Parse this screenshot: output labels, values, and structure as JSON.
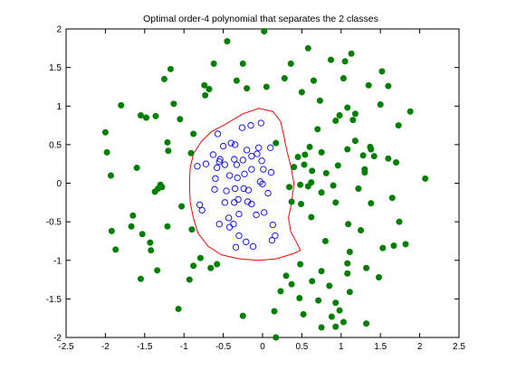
{
  "chart_data": {
    "type": "scatter",
    "title": "Optimal order-4 polynomial that separates the 2 classes",
    "xlabel": "",
    "ylabel": "",
    "xlim": [
      -2.5,
      2.5
    ],
    "ylim": [
      -2,
      2
    ],
    "xticks": [
      "-2.5",
      "-2",
      "-1.5",
      "-1",
      "-0.5",
      "0",
      "0.5",
      "1",
      "1.5",
      "2",
      "2.5"
    ],
    "yticks": [
      "-2",
      "-1.5",
      "-1",
      "-0.5",
      "0",
      "0.5",
      "1",
      "1.5",
      "2"
    ],
    "grid": false,
    "legend": "none",
    "colors": {
      "outer": "#007f00",
      "inner": "#0000ff",
      "boundary": "#ff0000"
    },
    "series": [
      {
        "marker": "filled-circle",
        "color": "#007f00",
        "points": [
          [
            0.02,
            1.97
          ],
          [
            -0.45,
            1.84
          ],
          [
            0.58,
            1.75
          ],
          [
            1.13,
            1.68
          ],
          [
            1.05,
            1.58
          ],
          [
            0.87,
            1.6
          ],
          [
            -0.25,
            1.55
          ],
          [
            0.36,
            1.55
          ],
          [
            -0.62,
            1.55
          ],
          [
            1.52,
            1.45
          ],
          [
            -1.17,
            1.48
          ],
          [
            -1.25,
            1.35
          ],
          [
            0.28,
            1.36
          ],
          [
            0.65,
            1.33
          ],
          [
            1.03,
            1.36
          ],
          [
            -0.33,
            1.33
          ],
          [
            -0.74,
            1.27
          ],
          [
            -0.68,
            1.22
          ],
          [
            1.35,
            1.27
          ],
          [
            0.05,
            1.25
          ],
          [
            0.5,
            1.18
          ],
          [
            1.6,
            1.26
          ],
          [
            -1.8,
            1.01
          ],
          [
            -1.55,
            0.88
          ],
          [
            -0.2,
            1.23
          ],
          [
            1.5,
            1.02
          ],
          [
            0.73,
            1.07
          ],
          [
            -1.13,
            1.03
          ],
          [
            -1.36,
            0.87
          ],
          [
            1.08,
            0.98
          ],
          [
            -0.73,
            1.14
          ],
          [
            1.18,
            0.9
          ],
          [
            0.98,
            0.88
          ],
          [
            1.88,
            0.93
          ],
          [
            -1.05,
            0.83
          ],
          [
            -1.48,
            0.85
          ],
          [
            0.93,
            0.81
          ],
          [
            1.15,
            0.82
          ],
          [
            0.7,
            0.7
          ],
          [
            1.73,
            0.75
          ],
          [
            -2.0,
            0.66
          ],
          [
            -0.88,
            0.64
          ],
          [
            1.18,
            0.55
          ],
          [
            1.38,
            0.44
          ],
          [
            0.6,
            0.47
          ],
          [
            -1.21,
            0.53
          ],
          [
            0.17,
            0.52
          ],
          [
            1.08,
            0.44
          ],
          [
            -1.98,
            0.4
          ],
          [
            1.37,
            0.47
          ],
          [
            -1.2,
            0.42
          ],
          [
            0.75,
            0.4
          ],
          [
            0.54,
            0.37
          ],
          [
            -0.91,
            0.39
          ],
          [
            0.45,
            0.34
          ],
          [
            1.28,
            0.36
          ],
          [
            1.42,
            0.35
          ],
          [
            1.6,
            0.32
          ],
          [
            0.53,
            0.24
          ],
          [
            -1.6,
            0.2
          ],
          [
            0.4,
            0.21
          ],
          [
            0.96,
            0.23
          ],
          [
            0.63,
            0.16
          ],
          [
            1.7,
            0.27
          ],
          [
            1.3,
            0.18
          ],
          [
            0.81,
            0.13
          ],
          [
            -1.93,
            0.1
          ],
          [
            1.3,
            0.14
          ],
          [
            2.07,
            0.06
          ],
          [
            0.62,
            0.01
          ],
          [
            0.48,
            -0.02
          ],
          [
            0.34,
            -0.05
          ],
          [
            -1.3,
            -0.02
          ],
          [
            0.9,
            -0.03
          ],
          [
            -1.28,
            -0.05
          ],
          [
            -1.33,
            -0.07
          ],
          [
            1.22,
            -0.07
          ],
          [
            0.58,
            -0.04
          ],
          [
            -1.37,
            -0.11
          ],
          [
            0.75,
            -0.12
          ],
          [
            1.65,
            -0.19
          ],
          [
            0.37,
            -0.24
          ],
          [
            0.49,
            -0.27
          ],
          [
            0.93,
            -0.25
          ],
          [
            1.38,
            -0.26
          ],
          [
            -1.03,
            -0.3
          ],
          [
            -1.65,
            -0.42
          ],
          [
            0.62,
            -0.44
          ],
          [
            1.74,
            -0.5
          ],
          [
            1.09,
            -0.53
          ],
          [
            -1.67,
            -0.56
          ],
          [
            1.25,
            -0.61
          ],
          [
            -1.21,
            -0.56
          ],
          [
            -0.9,
            -0.6
          ],
          [
            -1.53,
            -0.66
          ],
          [
            -1.92,
            -0.62
          ],
          [
            0.8,
            -0.75
          ],
          [
            -1.43,
            -0.77
          ],
          [
            1.67,
            -0.81
          ],
          [
            1.53,
            -0.84
          ],
          [
            1.82,
            -0.79
          ],
          [
            -1.87,
            -0.86
          ],
          [
            -1.42,
            -0.87
          ],
          [
            1.11,
            -0.89
          ],
          [
            -0.79,
            -0.97
          ],
          [
            1.08,
            -1.04
          ],
          [
            -0.88,
            -1.07
          ],
          [
            -1.34,
            -1.13
          ],
          [
            1.32,
            -1.1
          ],
          [
            0.48,
            -1.05
          ],
          [
            -0.66,
            -1.1
          ],
          [
            -0.58,
            -1.05
          ],
          [
            0.75,
            -1.14
          ],
          [
            1.08,
            -1.17
          ],
          [
            -1.55,
            -1.24
          ],
          [
            0.3,
            -1.2
          ],
          [
            1.48,
            -1.22
          ],
          [
            -0.93,
            -1.25
          ],
          [
            0.63,
            -1.27
          ],
          [
            0.37,
            -1.31
          ],
          [
            0.85,
            -1.33
          ],
          [
            0.23,
            -1.4
          ],
          [
            1.11,
            -1.41
          ],
          [
            0.47,
            -1.49
          ],
          [
            0.71,
            -1.52
          ],
          [
            0.93,
            -1.55
          ],
          [
            -1.07,
            -1.63
          ],
          [
            0.98,
            -1.65
          ],
          [
            0.52,
            -1.7
          ],
          [
            0.88,
            -1.73
          ],
          [
            -0.25,
            -1.72
          ],
          [
            0.15,
            -1.66
          ],
          [
            0.75,
            -1.87
          ],
          [
            1.03,
            -1.8
          ],
          [
            1.32,
            -1.82
          ],
          [
            0.93,
            -1.86
          ],
          [
            0.17,
            -2.0
          ]
        ]
      },
      {
        "marker": "open-circle",
        "color": "#0000ff",
        "points": [
          [
            -0.15,
            0.75
          ],
          [
            -0.02,
            0.78
          ],
          [
            -0.26,
            0.72
          ],
          [
            -0.57,
            0.64
          ],
          [
            -0.5,
            0.48
          ],
          [
            -0.35,
            0.5
          ],
          [
            -0.4,
            0.52
          ],
          [
            -0.05,
            0.46
          ],
          [
            0.1,
            0.46
          ],
          [
            -0.2,
            0.43
          ],
          [
            -0.07,
            0.38
          ],
          [
            -0.63,
            0.37
          ],
          [
            -0.14,
            0.35
          ],
          [
            -0.36,
            0.31
          ],
          [
            -0.54,
            0.31
          ],
          [
            -0.25,
            0.3
          ],
          [
            -0.01,
            0.29
          ],
          [
            -0.55,
            0.28
          ],
          [
            -0.72,
            0.25
          ],
          [
            -0.48,
            0.24
          ],
          [
            -0.33,
            0.24
          ],
          [
            -0.83,
            0.22
          ],
          [
            -0.58,
            0.2
          ],
          [
            -0.14,
            0.18
          ],
          [
            0.01,
            0.18
          ],
          [
            0.11,
            0.14
          ],
          [
            -0.23,
            0.12
          ],
          [
            -0.42,
            0.1
          ],
          [
            -0.32,
            0.07
          ],
          [
            -0.6,
            0.06
          ],
          [
            -0.03,
            0.02
          ],
          [
            0.0,
            -0.01
          ],
          [
            -0.24,
            -0.07
          ],
          [
            -0.35,
            -0.07
          ],
          [
            -0.61,
            -0.08
          ],
          [
            -0.18,
            -0.09
          ],
          [
            -0.46,
            -0.1
          ],
          [
            0.07,
            -0.13
          ],
          [
            -0.31,
            -0.21
          ],
          [
            -0.19,
            -0.24
          ],
          [
            -0.36,
            -0.25
          ],
          [
            -0.48,
            -0.25
          ],
          [
            -0.14,
            -0.27
          ],
          [
            -0.8,
            -0.28
          ],
          [
            -0.77,
            -0.35
          ],
          [
            0.02,
            -0.38
          ],
          [
            -0.3,
            -0.4
          ],
          [
            -0.08,
            -0.41
          ],
          [
            -0.43,
            -0.45
          ],
          [
            -0.55,
            -0.53
          ],
          [
            -0.37,
            -0.53
          ],
          [
            0.13,
            -0.54
          ],
          [
            -0.42,
            -0.57
          ],
          [
            0.16,
            -0.68
          ],
          [
            -0.3,
            -0.68
          ],
          [
            -0.21,
            -0.76
          ],
          [
            -0.34,
            -0.83
          ],
          [
            0.12,
            -0.74
          ],
          [
            -0.12,
            -0.82
          ]
        ]
      }
    ],
    "boundary": {
      "type": "line",
      "color": "#ff0000",
      "points": [
        [
          -0.48,
          0.76
        ],
        [
          -0.25,
          0.9
        ],
        [
          -0.05,
          0.97
        ],
        [
          0.13,
          0.93
        ],
        [
          0.23,
          0.8
        ],
        [
          0.27,
          0.62
        ],
        [
          0.31,
          0.42
        ],
        [
          0.36,
          0.22
        ],
        [
          0.4,
          0.0
        ],
        [
          0.37,
          -0.25
        ],
        [
          0.33,
          -0.45
        ],
        [
          0.36,
          -0.63
        ],
        [
          0.43,
          -0.76
        ],
        [
          0.48,
          -0.87
        ],
        [
          0.4,
          -0.91
        ],
        [
          0.18,
          -0.98
        ],
        [
          -0.05,
          -1.0
        ],
        [
          -0.3,
          -0.98
        ],
        [
          -0.52,
          -0.93
        ],
        [
          -0.69,
          -0.82
        ],
        [
          -0.82,
          -0.65
        ],
        [
          -0.88,
          -0.45
        ],
        [
          -0.92,
          -0.25
        ],
        [
          -0.93,
          0.0
        ],
        [
          -0.92,
          0.2
        ],
        [
          -0.88,
          0.38
        ],
        [
          -0.78,
          0.54
        ],
        [
          -0.65,
          0.67
        ],
        [
          -0.48,
          0.76
        ]
      ]
    }
  }
}
